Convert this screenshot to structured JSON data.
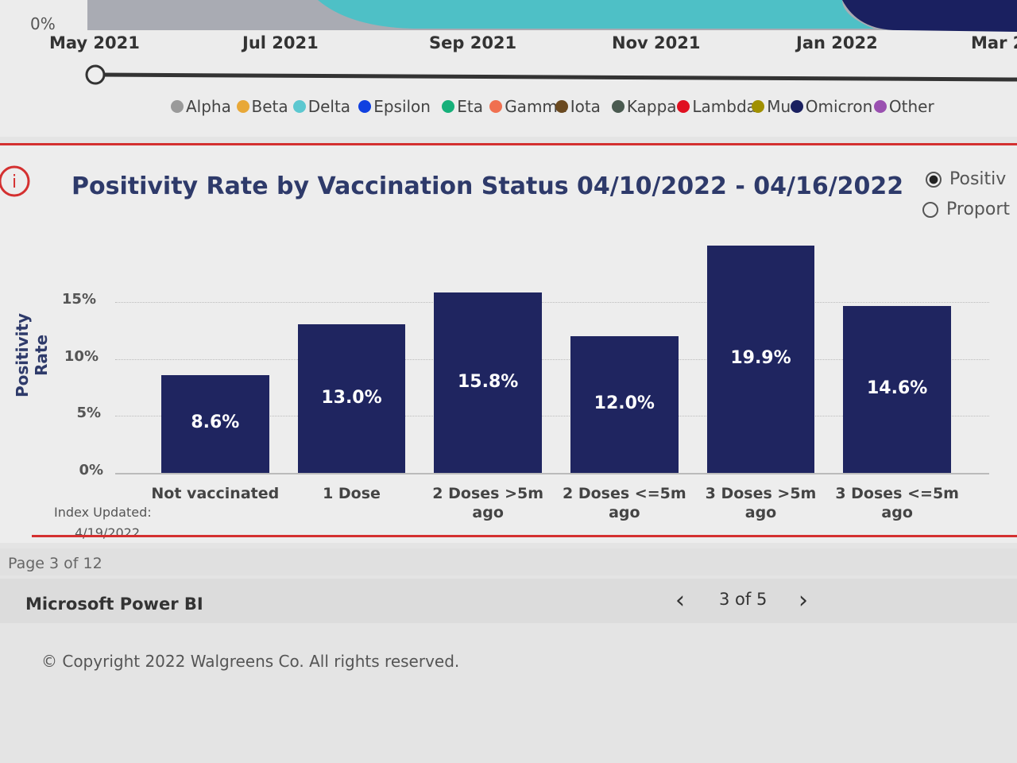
{
  "timeline": {
    "axis_label": "0%",
    "months": [
      "May 2021",
      "Jul 2021",
      "Sep 2021",
      "Nov 2021",
      "Jan 2022",
      "Mar 2"
    ]
  },
  "variant_legend": [
    {
      "name": "Alpha",
      "color": "#9a9a9a"
    },
    {
      "name": "Beta",
      "color": "#e8a838"
    },
    {
      "name": "Delta",
      "color": "#5cc8d0"
    },
    {
      "name": "Epsilon",
      "color": "#1040e0"
    },
    {
      "name": "Eta",
      "color": "#16b07a"
    },
    {
      "name": "Gamma",
      "color": "#f07050"
    },
    {
      "name": "Iota",
      "color": "#6b4a20"
    },
    {
      "name": "Kappa",
      "color": "#4a5a50"
    },
    {
      "name": "Lambda",
      "color": "#e01020"
    },
    {
      "name": "Mu",
      "color": "#a09000"
    },
    {
      "name": "Omicron",
      "color": "#1a2060"
    },
    {
      "name": "Other",
      "color": "#9a50b0"
    }
  ],
  "options": [
    "Positiv",
    "Proport"
  ],
  "chart_data": {
    "type": "bar",
    "title": "Positivity Rate by Vaccination Status 04/10/2022 - 04/16/2022",
    "y_label": "Positivity Rate",
    "categories": [
      "Not vaccinated",
      "1 Dose",
      "2 Doses >5m ago",
      "2 Doses <=5m ago",
      "3 Doses >5m ago",
      "3 Doses <=5m ago"
    ],
    "values": [
      8.6,
      13.0,
      15.8,
      12.0,
      19.9,
      14.6
    ],
    "value_labels": [
      "8.6%",
      "13.0%",
      "15.8%",
      "12.0%",
      "19.9%",
      "14.6%"
    ],
    "color": "#1f2560",
    "ylim": [
      0,
      20
    ],
    "yticks": [
      {
        "value": 0,
        "label": "0%"
      },
      {
        "value": 5,
        "label": "5%"
      },
      {
        "value": 10,
        "label": "10%"
      },
      {
        "value": 15,
        "label": "15%"
      }
    ],
    "grid": true
  },
  "index_note": {
    "label": "Index Updated:",
    "date": "4/19/2022"
  },
  "page_indicator": "Page 3 of 12",
  "footer": {
    "brand": "Microsoft Power BI",
    "pager": "3 of 5",
    "copyright": "© Copyright 2022 Walgreens Co. All rights reserved."
  }
}
